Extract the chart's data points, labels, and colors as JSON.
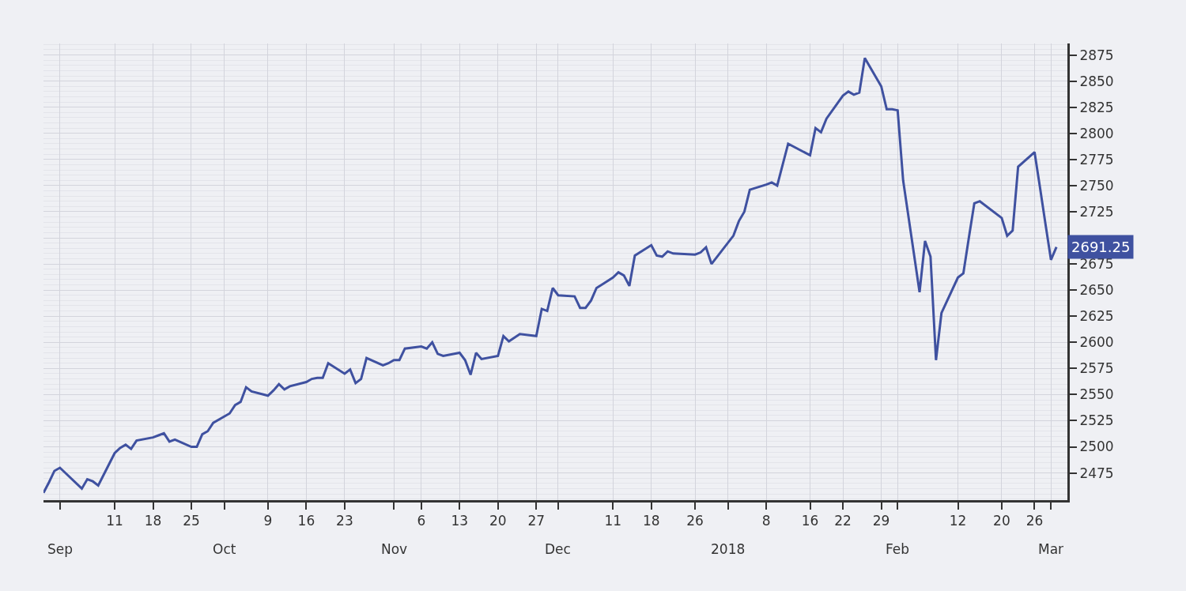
{
  "chart_data": {
    "type": "line",
    "x": [
      "2017-08-29",
      "2017-08-30",
      "2017-08-31",
      "2017-09-01",
      "2017-09-05",
      "2017-09-06",
      "2017-09-07",
      "2017-09-08",
      "2017-09-11",
      "2017-09-12",
      "2017-09-13",
      "2017-09-14",
      "2017-09-15",
      "2017-09-18",
      "2017-09-19",
      "2017-09-20",
      "2017-09-21",
      "2017-09-22",
      "2017-09-25",
      "2017-09-26",
      "2017-09-27",
      "2017-09-28",
      "2017-09-29",
      "2017-10-02",
      "2017-10-03",
      "2017-10-04",
      "2017-10-05",
      "2017-10-06",
      "2017-10-09",
      "2017-10-10",
      "2017-10-11",
      "2017-10-12",
      "2017-10-13",
      "2017-10-16",
      "2017-10-17",
      "2017-10-18",
      "2017-10-19",
      "2017-10-20",
      "2017-10-23",
      "2017-10-24",
      "2017-10-25",
      "2017-10-26",
      "2017-10-27",
      "2017-10-30",
      "2017-10-31",
      "2017-11-01",
      "2017-11-02",
      "2017-11-03",
      "2017-11-06",
      "2017-11-07",
      "2017-11-08",
      "2017-11-09",
      "2017-11-10",
      "2017-11-13",
      "2017-11-14",
      "2017-11-15",
      "2017-11-16",
      "2017-11-17",
      "2017-11-20",
      "2017-11-21",
      "2017-11-22",
      "2017-11-24",
      "2017-11-27",
      "2017-11-28",
      "2017-11-29",
      "2017-11-30",
      "2017-12-01",
      "2017-12-04",
      "2017-12-05",
      "2017-12-06",
      "2017-12-07",
      "2017-12-08",
      "2017-12-11",
      "2017-12-12",
      "2017-12-13",
      "2017-12-14",
      "2017-12-15",
      "2017-12-18",
      "2017-12-19",
      "2017-12-20",
      "2017-12-21",
      "2017-12-22",
      "2017-12-26",
      "2017-12-27",
      "2017-12-28",
      "2017-12-29",
      "2018-01-02",
      "2018-01-03",
      "2018-01-04",
      "2018-01-05",
      "2018-01-08",
      "2018-01-09",
      "2018-01-10",
      "2018-01-11",
      "2018-01-12",
      "2018-01-16",
      "2018-01-17",
      "2018-01-18",
      "2018-01-19",
      "2018-01-22",
      "2018-01-23",
      "2018-01-24",
      "2018-01-25",
      "2018-01-26",
      "2018-01-29",
      "2018-01-30",
      "2018-01-31",
      "2018-02-01",
      "2018-02-02",
      "2018-02-05",
      "2018-02-06",
      "2018-02-07",
      "2018-02-08",
      "2018-02-09",
      "2018-02-12",
      "2018-02-13",
      "2018-02-14",
      "2018-02-15",
      "2018-02-16",
      "2018-02-20",
      "2018-02-21",
      "2018-02-22",
      "2018-02-23",
      "2018-02-26",
      "2018-02-27",
      "2018-02-28",
      "2018-03-01",
      "2018-03-02"
    ],
    "series": [
      {
        "color": "#3f51a0",
        "values": [
          2456,
          2466,
          2477,
          2480,
          2460,
          2469,
          2467,
          2463,
          2494,
          2499,
          2502,
          2498,
          2506,
          2509,
          2511,
          2513,
          2505,
          2507,
          2500,
          2500,
          2512,
          2515,
          2523,
          2532,
          2540,
          2543,
          2557,
          2553,
          2549,
          2554,
          2560,
          2555,
          2558,
          2562,
          2565,
          2566,
          2566,
          2580,
          2570,
          2574,
          2561,
          2565,
          2585,
          2578,
          2580,
          2583,
          2583,
          2594,
          2596,
          2594,
          2600,
          2589,
          2587,
          2590,
          2583,
          2569,
          2590,
          2584,
          2587,
          2606,
          2601,
          2608,
          2606,
          2632,
          2630,
          2652,
          2645,
          2644,
          2633,
          2633,
          2640,
          2652,
          2662,
          2667,
          2664,
          2654,
          2683,
          2693,
          2683,
          2682,
          2687,
          2685,
          2684,
          2686,
          2691,
          2675,
          2702,
          2716,
          2725,
          2746,
          2751,
          2753,
          2750,
          2770,
          2790,
          2779,
          2805,
          2801,
          2814,
          2836,
          2840,
          2837,
          2839,
          2872,
          2845,
          2823,
          2823,
          2822,
          2755,
          2648,
          2697,
          2682,
          2583,
          2628,
          2662,
          2666,
          2700,
          2733,
          2735,
          2719,
          2702,
          2707,
          2768,
          2782,
          2748,
          2713,
          2679,
          2691.25
        ]
      }
    ],
    "xlim": [
      "2017-08-29",
      "2018-03-04"
    ],
    "xticks": [
      {
        "value": "2017-09-01",
        "label": null
      },
      {
        "value": "2017-09-11",
        "label": "11"
      },
      {
        "value": "2017-09-18",
        "label": "18"
      },
      {
        "value": "2017-09-25",
        "label": "25"
      },
      {
        "value": "2017-10-09",
        "label": "9"
      },
      {
        "value": "2017-10-16",
        "label": "16"
      },
      {
        "value": "2017-10-23",
        "label": "23"
      },
      {
        "value": "2017-11-06",
        "label": "6"
      },
      {
        "value": "2017-11-13",
        "label": "13"
      },
      {
        "value": "2017-11-20",
        "label": "20"
      },
      {
        "value": "2017-11-27",
        "label": "27"
      },
      {
        "value": "2017-12-01",
        "label": null
      },
      {
        "value": "2017-12-11",
        "label": "11"
      },
      {
        "value": "2017-12-18",
        "label": "18"
      },
      {
        "value": "2017-12-26",
        "label": "26"
      },
      {
        "value": "2018-01-08",
        "label": "8"
      },
      {
        "value": "2018-01-16",
        "label": "16"
      },
      {
        "value": "2018-01-22",
        "label": "22"
      },
      {
        "value": "2018-01-29",
        "label": "29"
      },
      {
        "value": "2018-02-01",
        "label": null
      },
      {
        "value": "2018-02-12",
        "label": "12"
      },
      {
        "value": "2018-02-20",
        "label": "20"
      },
      {
        "value": "2018-02-26",
        "label": "26"
      },
      {
        "value": "2018-03-01",
        "label": null
      }
    ],
    "x2lim": [
      "2017-08-29",
      "2018-03-04"
    ],
    "x2ticks": [
      {
        "value": "2017-09-01",
        "label": "Sep"
      },
      {
        "value": "2017-10-01",
        "label": "Oct"
      },
      {
        "value": "2017-11-01",
        "label": "Nov"
      },
      {
        "value": "2017-12-01",
        "label": "Dec"
      },
      {
        "value": "2018-01-01",
        "label": "2018"
      },
      {
        "value": "2018-02-01",
        "label": "Feb"
      },
      {
        "value": "2018-03-01",
        "label": "Mar"
      }
    ],
    "ylim": [
      2449,
      2886
    ],
    "yticks": [
      2475,
      2500,
      2525,
      2550,
      2575,
      2600,
      2625,
      2650,
      2675,
      {
        "value": 2700,
        "label": null
      },
      2725,
      2750,
      2775,
      2800,
      2825,
      2850,
      2875
    ],
    "annotations": [
      {
        "text": "2691.25",
        "x": "2018-03-02",
        "y": 2691.25
      }
    ],
    "grid": true,
    "marker": "none",
    "line_style": "solid"
  }
}
